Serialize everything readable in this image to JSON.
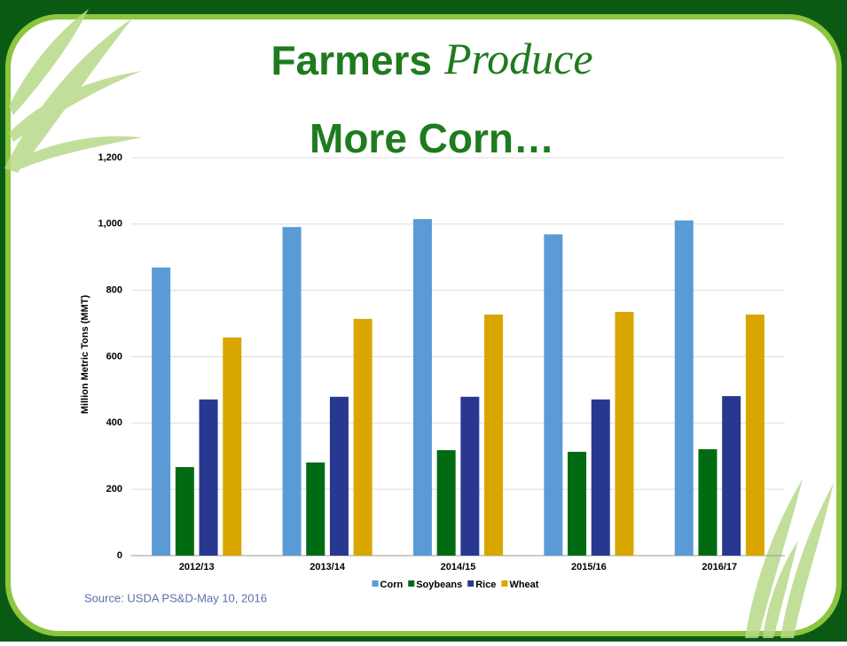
{
  "chart_data": {
    "type": "bar",
    "title": "Farmers",
    "title_emphasis": "Produce",
    "subtitle": "More Corn…",
    "y_label": "Million Metric Tons (MMT)",
    "source": "Source: USDA PS&D-May 10, 2016",
    "categories": [
      "2012/13",
      "2013/14",
      "2014/15",
      "2015/16",
      "2016/17"
    ],
    "series": [
      {
        "name": "Corn",
        "color": "#5b9bd5",
        "values": [
          869,
          991,
          1015,
          969,
          1011
        ]
      },
      {
        "name": "Soybeans",
        "color": "#006b12",
        "values": [
          267,
          281,
          318,
          313,
          321
        ]
      },
      {
        "name": "Rice",
        "color": "#283891",
        "values": [
          471,
          479,
          479,
          471,
          481
        ]
      },
      {
        "name": "Wheat",
        "color": "#d9a600",
        "values": [
          658,
          714,
          727,
          735,
          727
        ]
      }
    ],
    "ylim": [
      0,
      1200
    ],
    "yticks": [
      0,
      200,
      400,
      600,
      800,
      {
        "value": 1000,
        "label": "1,000"
      },
      {
        "value": 1200,
        "label": "1,200"
      }
    ],
    "grid": true,
    "legend": "bottom"
  }
}
